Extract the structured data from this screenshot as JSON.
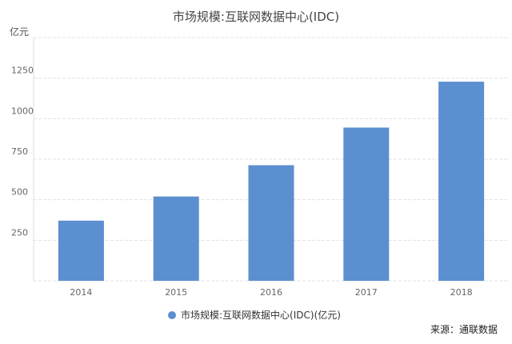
{
  "chart_data": {
    "type": "bar",
    "title": "市场规模:互联网数据中心(IDC)",
    "ylabel": "亿元",
    "categories": [
      "2014",
      "2015",
      "2016",
      "2017",
      "2018"
    ],
    "series": [
      {
        "name": "市场规模:互联网数据中心(IDC)(亿元)",
        "color": "#5b8fd0",
        "values": [
          371,
          520,
          713,
          945,
          1228
        ]
      }
    ],
    "ylim": [
      0,
      1500
    ],
    "yticks": [
      250,
      500,
      750,
      1000,
      1250
    ],
    "grid": true,
    "legend": "bottom",
    "source": "来源：通联数据"
  }
}
